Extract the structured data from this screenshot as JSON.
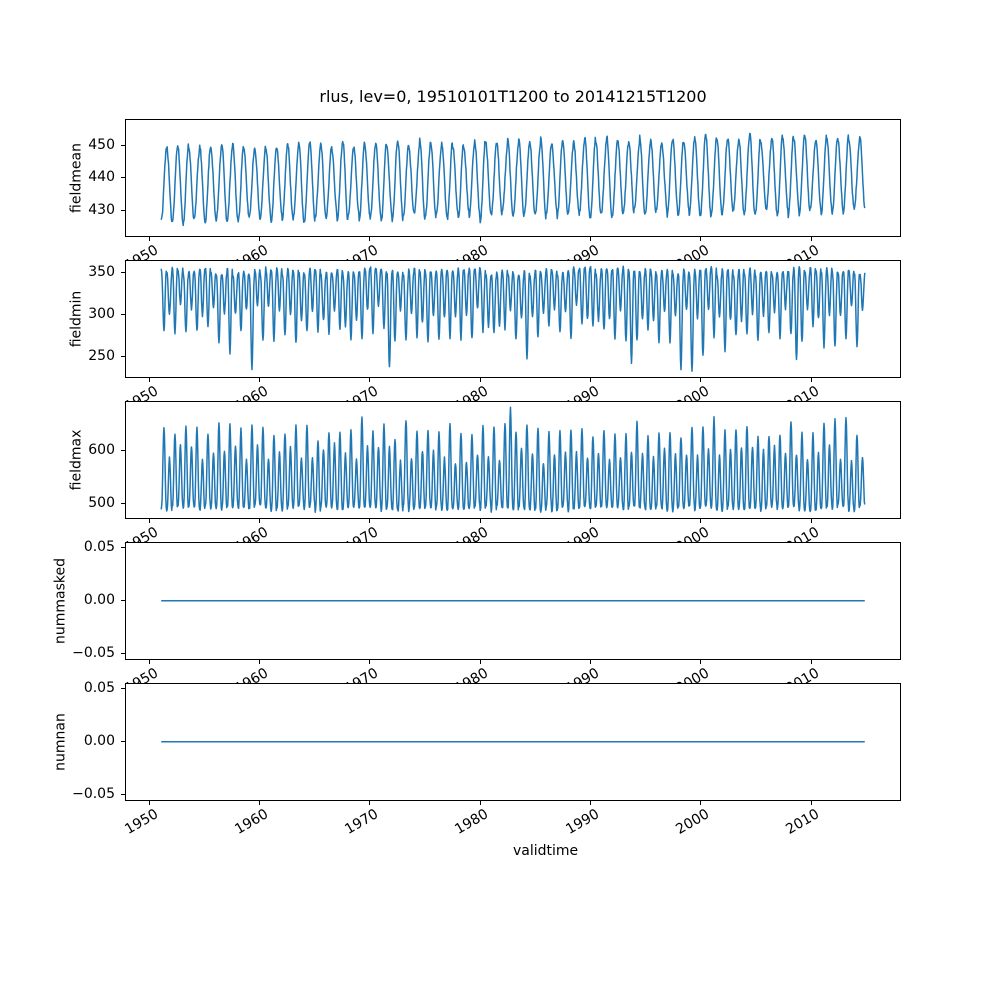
{
  "chart_data": {
    "type": "line",
    "title": "rlus, lev=0, 19510101T1200 to 20141215T1200",
    "xlabel": "validtime",
    "x_start": 1951.0,
    "x_end": 2014.958,
    "xlim": [
      1947.8,
      2018.16
    ],
    "points_per_year": 24,
    "line_color": "#1f77b4",
    "axis_color": "#000000",
    "background_color": "#ffffff",
    "xticks": {
      "values": [
        1950,
        1960,
        1970,
        1980,
        1990,
        2000,
        2010
      ],
      "labels": [
        "1950",
        "1960",
        "1970",
        "1980",
        "1990",
        "2000",
        "2010"
      ]
    },
    "subplots": [
      {
        "ylabel": "fieldmean",
        "ylim": [
          422.0,
          458.0
        ],
        "yticks": {
          "values": [
            430,
            440,
            450
          ],
          "labels": [
            "430",
            "440",
            "450"
          ]
        },
        "series": {
          "kind": "seasonal",
          "mean": 439.6,
          "amplitude": 11.5,
          "amplitude_jitter": 1.4,
          "trend_total": 3.2,
          "noise": 0.7,
          "data_range": [
            423.6,
            456.4
          ],
          "seed": 11
        }
      },
      {
        "ylabel": "fieldmin",
        "ylim": [
          225.7,
          364.3
        ],
        "yticks": {
          "values": [
            250,
            300,
            350
          ],
          "labels": [
            "250",
            "300",
            "350"
          ]
        },
        "series": {
          "kind": "seasonal-dips",
          "top": 351,
          "top_jitter": 5,
          "dip_major": 84,
          "dip_minor": 56,
          "dip_jitter": 12,
          "deep_dip_chance": 0.06,
          "deep_dip_extra": 30,
          "extremes": [
            [
              12,
              108
            ],
            [
              41,
              121
            ],
            [
              66,
              110
            ],
            [
              85,
              117
            ],
            [
              115,
              118
            ]
          ],
          "noise": 2.2,
          "data_range": [
            232.0,
            358.0
          ],
          "seed": 22
        }
      },
      {
        "ylabel": "fieldmax",
        "ylim": [
          470.9,
          693.1
        ],
        "yticks": {
          "values": [
            500,
            600
          ],
          "labels": [
            "500",
            "600"
          ]
        },
        "series": {
          "kind": "seasonal-spikes",
          "bottom": 493,
          "bottom_jitter": 5,
          "peak_major": 150,
          "peak_minor": 105,
          "peak_jitter": 16,
          "tall_peak_chance": 0.05,
          "tall_peak_extra": 25,
          "extremes": [
            [
              63,
              194
            ]
          ],
          "noise": 3.0,
          "data_range": [
            481.0,
            683.0
          ],
          "seed": 33
        }
      },
      {
        "ylabel": "nummasked",
        "ylim": [
          -0.0555,
          0.0555
        ],
        "yticks": {
          "values": [
            -0.05,
            0,
            0.05
          ],
          "labels": [
            "−0.05",
            "0.00",
            "0.05"
          ]
        },
        "series": {
          "kind": "constant",
          "value": 0,
          "value_label": "0.00"
        }
      },
      {
        "ylabel": "numnan",
        "ylim": [
          -0.0555,
          0.0555
        ],
        "yticks": {
          "values": [
            -0.05,
            0,
            0.05
          ],
          "labels": [
            "−0.05",
            "0.00",
            "0.05"
          ]
        },
        "series": {
          "kind": "constant",
          "value": 0,
          "value_label": "0.00"
        }
      }
    ]
  }
}
